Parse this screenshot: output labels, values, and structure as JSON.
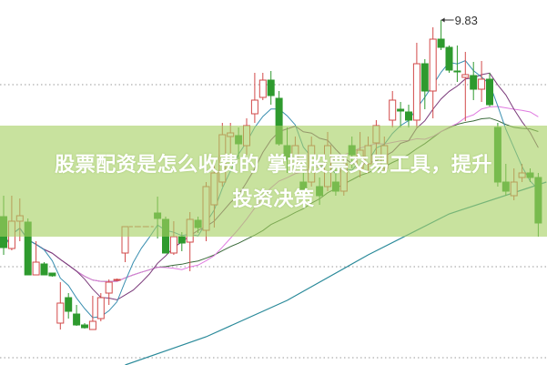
{
  "overlay": {
    "title_line1": "股票配资是怎么收费的 掌握股票交易工具，提升",
    "title_line2": "投资决策"
  },
  "chart_data": {
    "type": "candlestick",
    "title": "",
    "annotations": [
      {
        "text": "9.83",
        "target": "high",
        "index": 54
      }
    ],
    "colors": {
      "up": "#d24a4a",
      "down": "#2e9a2e",
      "ma5": "#3a8fb0",
      "ma10": "#7a3a7a",
      "ma20": "#e07ae0",
      "ma30": "#3a6a3a",
      "ma60": "#2a8a9a",
      "grid": "#999999",
      "banner": "#a6d062"
    },
    "grid": true,
    "ylim": [
      6.04,
      10.05
    ],
    "gridlines": [
      9.12,
      7.12,
      6.12
    ],
    "candles": [
      [
        7.67,
        7.33,
        7.9,
        7.25
      ],
      [
        7.32,
        7.62,
        7.9,
        7.3
      ],
      [
        7.62,
        7.68,
        7.87,
        7.4
      ],
      [
        7.61,
        7.03,
        7.65,
        7.03
      ],
      [
        7.03,
        7.17,
        7.4,
        7.03
      ],
      [
        7.15,
        7.03,
        7.17,
        7.03
      ],
      [
        7.05,
        7.02,
        7.05,
        7.01
      ],
      [
        6.5,
        6.72,
        6.95,
        6.43
      ],
      [
        6.78,
        6.63,
        6.83,
        6.55
      ],
      [
        6.6,
        6.48,
        6.7,
        6.47
      ],
      [
        6.48,
        6.45,
        6.5,
        6.44
      ],
      [
        6.43,
        6.52,
        6.8,
        6.43
      ],
      [
        6.55,
        6.78,
        6.83,
        6.52
      ],
      [
        6.83,
        6.95,
        6.98,
        6.7
      ],
      [
        6.97,
        6.98,
        6.99,
        6.96
      ],
      [
        7.27,
        7.56,
        7.56,
        7.17
      ],
      [
        7.56,
        7.56,
        7.56,
        7.56
      ],
      [
        7.56,
        7.56,
        7.56,
        7.56
      ],
      [
        7.56,
        7.56,
        7.56,
        7.56
      ],
      [
        7.71,
        7.65,
        7.89,
        7.43
      ],
      [
        7.64,
        7.27,
        7.67,
        7.27
      ],
      [
        7.27,
        7.45,
        7.62,
        7.25
      ],
      [
        7.45,
        7.38,
        7.5,
        7.29
      ],
      [
        7.39,
        7.64,
        7.72,
        7.07
      ],
      [
        7.63,
        7.55,
        7.67,
        7.49
      ],
      [
        7.52,
        8.0,
        8.05,
        7.4
      ],
      [
        7.8,
        8.15,
        8.25,
        7.55
      ],
      [
        8.05,
        8.57,
        8.7,
        8.0
      ],
      [
        8.55,
        8.59,
        8.7,
        8.3
      ],
      [
        8.56,
        8.47,
        8.65,
        8.3
      ],
      [
        8.45,
        8.67,
        8.75,
        8.35
      ],
      [
        8.8,
        8.95,
        9.25,
        8.7
      ],
      [
        8.98,
        9.17,
        9.25,
        8.95
      ],
      [
        9.17,
        9.0,
        9.27,
        8.9
      ],
      [
        8.97,
        8.47,
        9.05,
        8.45
      ],
      [
        8.45,
        8.3,
        8.65,
        8.15
      ],
      [
        8.25,
        8.45,
        8.55,
        8.15
      ],
      [
        8.05,
        7.95,
        8.15,
        7.85
      ],
      [
        8.05,
        8.45,
        8.55,
        8.0
      ],
      [
        8.0,
        7.9,
        8.1,
        7.8
      ],
      [
        8.0,
        8.45,
        8.6,
        7.95
      ],
      [
        8.05,
        7.95,
        8.2,
        7.9
      ],
      [
        7.95,
        8.25,
        8.3,
        7.9
      ],
      [
        8.45,
        8.35,
        8.55,
        8.2
      ],
      [
        8.2,
        8.4,
        8.6,
        8.1
      ],
      [
        8.25,
        8.45,
        8.55,
        8.15
      ],
      [
        8.48,
        8.67,
        8.73,
        8.35
      ],
      [
        8.2,
        8.45,
        8.55,
        8.15
      ],
      [
        8.73,
        8.95,
        9.05,
        8.65
      ],
      [
        8.85,
        8.83,
        8.93,
        8.65
      ],
      [
        8.82,
        8.73,
        8.9,
        8.65
      ],
      [
        8.73,
        9.35,
        9.58,
        8.65
      ],
      [
        9.35,
        9.05,
        9.4,
        8.85
      ],
      [
        9.05,
        9.62,
        9.75,
        8.75
      ],
      [
        9.62,
        9.53,
        9.83,
        9.5
      ],
      [
        9.53,
        9.28,
        9.55,
        9.25
      ],
      [
        9.27,
        9.26,
        9.55,
        9.15
      ],
      [
        9.2,
        9.23,
        9.48,
        8.72
      ],
      [
        9.22,
        9.07,
        9.37,
        8.95
      ],
      [
        9.07,
        9.18,
        9.38,
        8.93
      ],
      [
        9.18,
        8.9,
        9.25,
        8.88
      ],
      [
        8.65,
        8.05,
        8.7,
        8.0
      ],
      [
        8.05,
        7.95,
        8.25,
        7.9
      ],
      [
        7.9,
        8.05,
        8.2,
        7.85
      ],
      [
        8.1,
        8.15,
        8.25,
        8.05
      ],
      [
        8.15,
        8.1,
        8.2,
        8.05
      ],
      [
        8.1,
        7.6,
        8.15,
        7.45
      ]
    ],
    "candle_fields": [
      "open",
      "close",
      "high",
      "low"
    ],
    "moving_averages": [
      5,
      10,
      20,
      30
    ],
    "ma60": [
      [
        15,
        6.04
      ],
      [
        25,
        6.35
      ],
      [
        35,
        6.75
      ],
      [
        45,
        7.25
      ],
      [
        55,
        7.7
      ],
      [
        67,
        8.05
      ]
    ]
  }
}
